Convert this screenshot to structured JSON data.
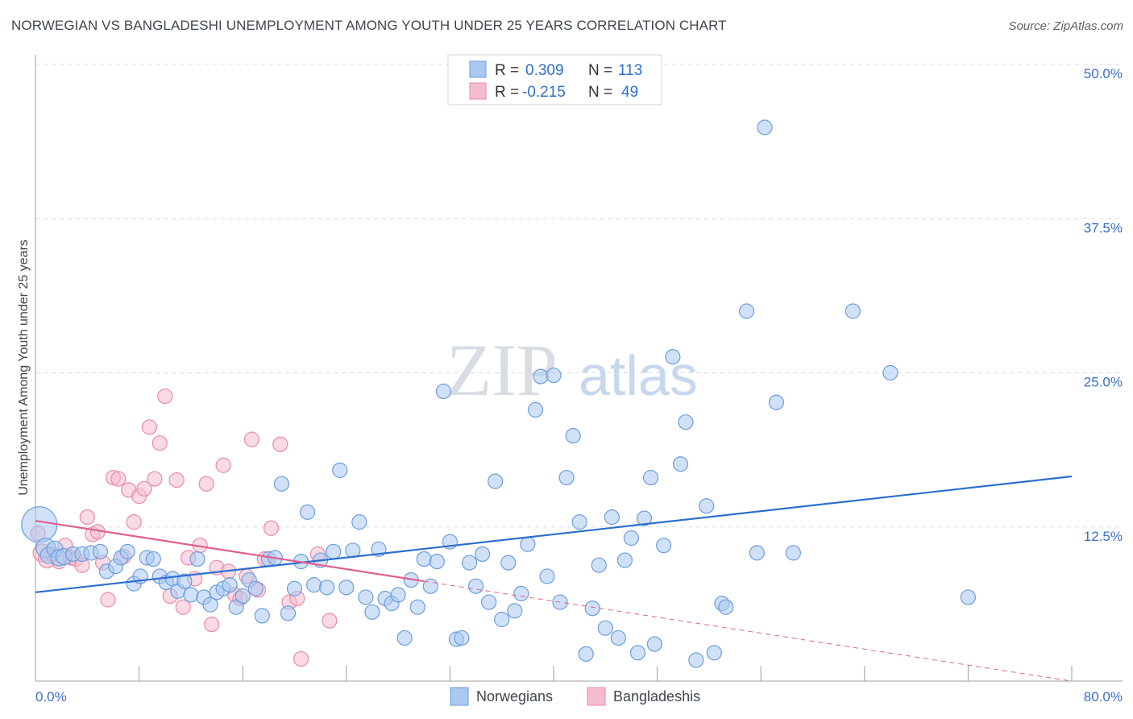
{
  "header": {
    "title": "NORWEGIAN VS BANGLADESHI UNEMPLOYMENT AMONG YOUTH UNDER 25 YEARS CORRELATION CHART",
    "source": "Source: ZipAtlas.com"
  },
  "watermark": {
    "zip": "ZIP",
    "atlas": "atlas"
  },
  "colors": {
    "blue_fill": "#aac8f0",
    "blue_stroke": "#6d9ddc",
    "blue_line": "#2d6fce",
    "pink_fill": "#f5bccd",
    "pink_stroke": "#e98aa9",
    "pink_line": "#e0608f",
    "grid": "#dcdcdc",
    "value_text": "#2d6fce"
  },
  "legend": {
    "rows": [
      {
        "r_label": "R =",
        "r_value": "0.309",
        "n_label": "N =",
        "n_value": "113",
        "color": "blue"
      },
      {
        "r_label": "R =",
        "r_value": "-0.215",
        "n_label": "N =",
        "n_value": "49",
        "color": "pink"
      }
    ]
  },
  "chart_data": {
    "type": "scatter",
    "ylabel": "Unemployment Among Youth under 25 years",
    "xlim": [
      0,
      80
    ],
    "ylim": [
      0,
      50
    ],
    "x_ticks": [
      "0.0%",
      "80.0%"
    ],
    "y_ticks": [
      {
        "value": 12.5,
        "label": "12.5%"
      },
      {
        "value": 25,
        "label": "25.0%"
      },
      {
        "value": 37.5,
        "label": "37.5%"
      },
      {
        "value": 50,
        "label": "50.0%"
      }
    ],
    "legend_position": "bottom-center",
    "series": [
      {
        "name": "Norwegians",
        "color": "blue",
        "trend": {
          "x": [
            0,
            80
          ],
          "y": [
            7.2,
            16.6
          ]
        },
        "points": [
          [
            0.3,
            12.7,
            22
          ],
          [
            0.8,
            10.8,
            12
          ],
          [
            1.0,
            10.2,
            10
          ],
          [
            1.5,
            10.7,
            10
          ],
          [
            1.8,
            10.0,
            10
          ],
          [
            2.2,
            10.1,
            10
          ],
          [
            2.9,
            10.3,
            9
          ],
          [
            3.6,
            10.3,
            9
          ],
          [
            4.3,
            10.4,
            9
          ],
          [
            5.0,
            10.5,
            9
          ],
          [
            5.5,
            8.9,
            9
          ],
          [
            6.2,
            9.3,
            9
          ],
          [
            6.6,
            10.0,
            9
          ],
          [
            7.1,
            10.5,
            9
          ],
          [
            7.6,
            7.9,
            9
          ],
          [
            8.1,
            8.5,
            9
          ],
          [
            8.6,
            10.0,
            9
          ],
          [
            9.1,
            9.9,
            9
          ],
          [
            9.6,
            8.5,
            9
          ],
          [
            10.1,
            8.0,
            9
          ],
          [
            10.6,
            8.3,
            9
          ],
          [
            11.0,
            7.3,
            9
          ],
          [
            11.5,
            8.1,
            9
          ],
          [
            12.0,
            7.0,
            9
          ],
          [
            12.5,
            9.9,
            9
          ],
          [
            13.0,
            6.8,
            9
          ],
          [
            13.5,
            6.2,
            9
          ],
          [
            14.0,
            7.2,
            9
          ],
          [
            14.5,
            7.5,
            9
          ],
          [
            15.0,
            7.8,
            9
          ],
          [
            15.5,
            6.0,
            9
          ],
          [
            16.0,
            6.9,
            9
          ],
          [
            16.5,
            8.2,
            9
          ],
          [
            17.0,
            7.5,
            9
          ],
          [
            17.5,
            5.3,
            9
          ],
          [
            18.0,
            9.9,
            9
          ],
          [
            18.5,
            10.0,
            9
          ],
          [
            19.0,
            16.0,
            9
          ],
          [
            19.5,
            5.5,
            9
          ],
          [
            20.0,
            7.5,
            9
          ],
          [
            20.5,
            9.7,
            9
          ],
          [
            21.0,
            13.7,
            9
          ],
          [
            21.5,
            7.8,
            9
          ],
          [
            22.0,
            9.8,
            9
          ],
          [
            22.5,
            7.6,
            9
          ],
          [
            23.0,
            10.5,
            9
          ],
          [
            23.5,
            17.1,
            9
          ],
          [
            24.0,
            7.6,
            9
          ],
          [
            24.5,
            10.6,
            9
          ],
          [
            25.0,
            12.9,
            9
          ],
          [
            25.5,
            6.8,
            9
          ],
          [
            26.0,
            5.6,
            9
          ],
          [
            26.5,
            10.7,
            9
          ],
          [
            27.0,
            6.7,
            9
          ],
          [
            27.5,
            6.3,
            9
          ],
          [
            28.0,
            7.0,
            9
          ],
          [
            28.5,
            3.5,
            9
          ],
          [
            29.0,
            8.2,
            9
          ],
          [
            29.5,
            6.0,
            9
          ],
          [
            30.0,
            9.9,
            9
          ],
          [
            30.5,
            7.7,
            9
          ],
          [
            31.0,
            9.7,
            9
          ],
          [
            31.5,
            23.5,
            9
          ],
          [
            32.0,
            11.3,
            9
          ],
          [
            32.5,
            3.4,
            9
          ],
          [
            32.9,
            3.5,
            9
          ],
          [
            33.5,
            9.6,
            9
          ],
          [
            34.0,
            7.7,
            9
          ],
          [
            34.5,
            10.3,
            9
          ],
          [
            35.0,
            6.4,
            9
          ],
          [
            35.5,
            16.2,
            9
          ],
          [
            36.0,
            5.0,
            9
          ],
          [
            36.5,
            9.6,
            9
          ],
          [
            37.0,
            5.7,
            9
          ],
          [
            37.5,
            7.1,
            9
          ],
          [
            38.0,
            11.1,
            9
          ],
          [
            38.6,
            22.0,
            9
          ],
          [
            39.0,
            24.7,
            9
          ],
          [
            39.5,
            8.5,
            9
          ],
          [
            40.0,
            24.8,
            9
          ],
          [
            40.5,
            6.4,
            9
          ],
          [
            41.0,
            16.5,
            9
          ],
          [
            41.5,
            19.9,
            9
          ],
          [
            42.0,
            12.9,
            9
          ],
          [
            42.5,
            2.2,
            9
          ],
          [
            43.0,
            5.9,
            9
          ],
          [
            43.5,
            9.4,
            9
          ],
          [
            44.0,
            4.3,
            9
          ],
          [
            44.5,
            13.3,
            9
          ],
          [
            45.0,
            3.5,
            9
          ],
          [
            45.5,
            9.8,
            9
          ],
          [
            46.0,
            11.6,
            9
          ],
          [
            46.5,
            2.3,
            9
          ],
          [
            47.0,
            13.2,
            9
          ],
          [
            47.5,
            16.5,
            9
          ],
          [
            47.8,
            3.0,
            9
          ],
          [
            48.5,
            11.0,
            9
          ],
          [
            49.2,
            26.3,
            9
          ],
          [
            49.8,
            17.6,
            9
          ],
          [
            50.2,
            21.0,
            9
          ],
          [
            51.0,
            1.7,
            9
          ],
          [
            51.8,
            14.2,
            9
          ],
          [
            52.4,
            2.3,
            9
          ],
          [
            53.0,
            6.3,
            9
          ],
          [
            53.3,
            6.0,
            9
          ],
          [
            54.9,
            30.0,
            9
          ],
          [
            55.7,
            10.4,
            9
          ],
          [
            56.3,
            44.9,
            9
          ],
          [
            57.2,
            22.6,
            9
          ],
          [
            63.1,
            30.0,
            9
          ],
          [
            66.0,
            25.0,
            9
          ],
          [
            72.0,
            6.8,
            9
          ],
          [
            58.5,
            10.4,
            9
          ]
        ]
      },
      {
        "name": "Bangladeshis",
        "color": "pink",
        "trend": {
          "x": [
            0,
            30
          ],
          "y": [
            13.0,
            8.1
          ]
        },
        "trend_extension": {
          "x": [
            30,
            80
          ],
          "y": [
            8.1,
            0.0
          ]
        },
        "points": [
          [
            0.2,
            12.0,
            9
          ],
          [
            0.5,
            10.4,
            11
          ],
          [
            0.9,
            9.9,
            11
          ],
          [
            1.3,
            10.3,
            9
          ],
          [
            1.8,
            9.7,
            9
          ],
          [
            2.3,
            11.0,
            9
          ],
          [
            2.7,
            10.0,
            9
          ],
          [
            3.1,
            9.9,
            9
          ],
          [
            3.6,
            9.4,
            9
          ],
          [
            4.0,
            13.3,
            9
          ],
          [
            4.4,
            11.9,
            9
          ],
          [
            4.8,
            12.1,
            9
          ],
          [
            5.2,
            9.6,
            9
          ],
          [
            5.6,
            6.6,
            9
          ],
          [
            6.0,
            16.5,
            9
          ],
          [
            6.4,
            16.4,
            9
          ],
          [
            6.8,
            10.1,
            9
          ],
          [
            7.2,
            15.5,
            9
          ],
          [
            7.6,
            12.9,
            9
          ],
          [
            8.0,
            15.0,
            9
          ],
          [
            8.4,
            15.6,
            9
          ],
          [
            8.8,
            20.6,
            9
          ],
          [
            9.2,
            16.4,
            9
          ],
          [
            9.6,
            19.3,
            9
          ],
          [
            10.0,
            23.1,
            9
          ],
          [
            10.4,
            6.9,
            9
          ],
          [
            10.9,
            16.3,
            9
          ],
          [
            11.4,
            6.0,
            9
          ],
          [
            11.8,
            10.0,
            9
          ],
          [
            12.3,
            8.3,
            9
          ],
          [
            12.7,
            11.0,
            9
          ],
          [
            13.2,
            16.0,
            9
          ],
          [
            13.6,
            4.6,
            9
          ],
          [
            14.0,
            9.2,
            9
          ],
          [
            14.5,
            17.5,
            9
          ],
          [
            14.9,
            8.9,
            9
          ],
          [
            15.4,
            7.0,
            9
          ],
          [
            15.8,
            6.7,
            9
          ],
          [
            16.3,
            8.5,
            9
          ],
          [
            16.7,
            19.6,
            9
          ],
          [
            17.2,
            7.4,
            9
          ],
          [
            17.7,
            9.9,
            9
          ],
          [
            18.2,
            12.4,
            9
          ],
          [
            18.9,
            19.2,
            9
          ],
          [
            19.6,
            6.4,
            9
          ],
          [
            20.2,
            6.7,
            9
          ],
          [
            20.5,
            1.8,
            9
          ],
          [
            21.8,
            10.3,
            9
          ],
          [
            22.7,
            4.9,
            9
          ]
        ]
      }
    ]
  }
}
